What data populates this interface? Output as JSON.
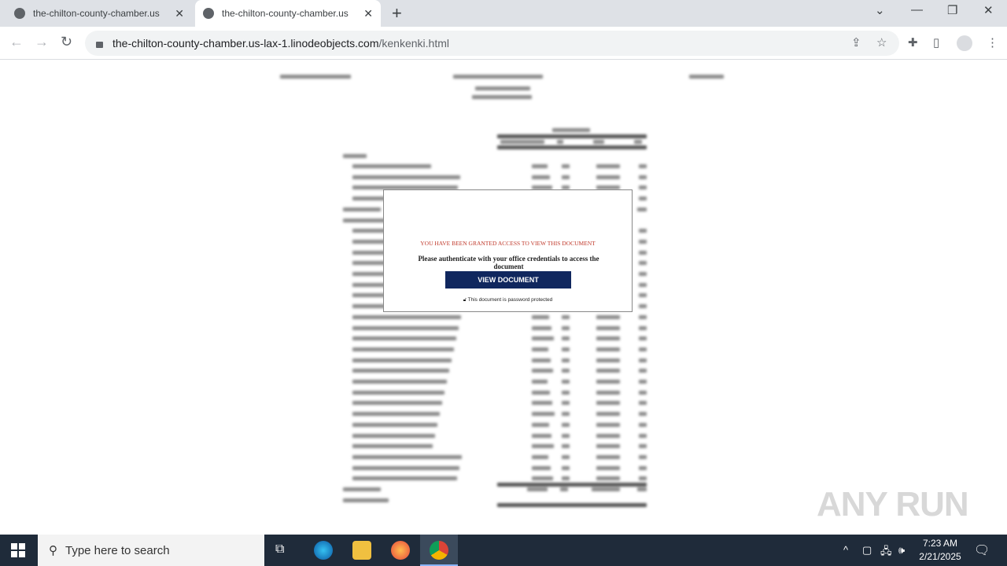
{
  "browser": {
    "tabs": [
      {
        "title": "the-chilton-county-chamber.us",
        "active": false
      },
      {
        "title": "the-chilton-county-chamber.us",
        "active": true
      }
    ],
    "url_host": "the-chilton-county-chamber.us-lax-1.linodeobjects.com",
    "url_path": "/kenkenki.html"
  },
  "modal": {
    "notice": "YOU HAVE BEEN GRANTED ACCESS TO VIEW THIS DOCUMENT",
    "message": "Please authenticate with your office credentials to access the document",
    "button": "VIEW DOCUMENT",
    "footer": "This document is password protected",
    "button_color": "#10275e",
    "notice_color": "#c0392b"
  },
  "watermark": "ANY RUN",
  "taskbar": {
    "search_placeholder": "Type here to search",
    "time": "7:23 AM",
    "date": "2/21/2025"
  }
}
